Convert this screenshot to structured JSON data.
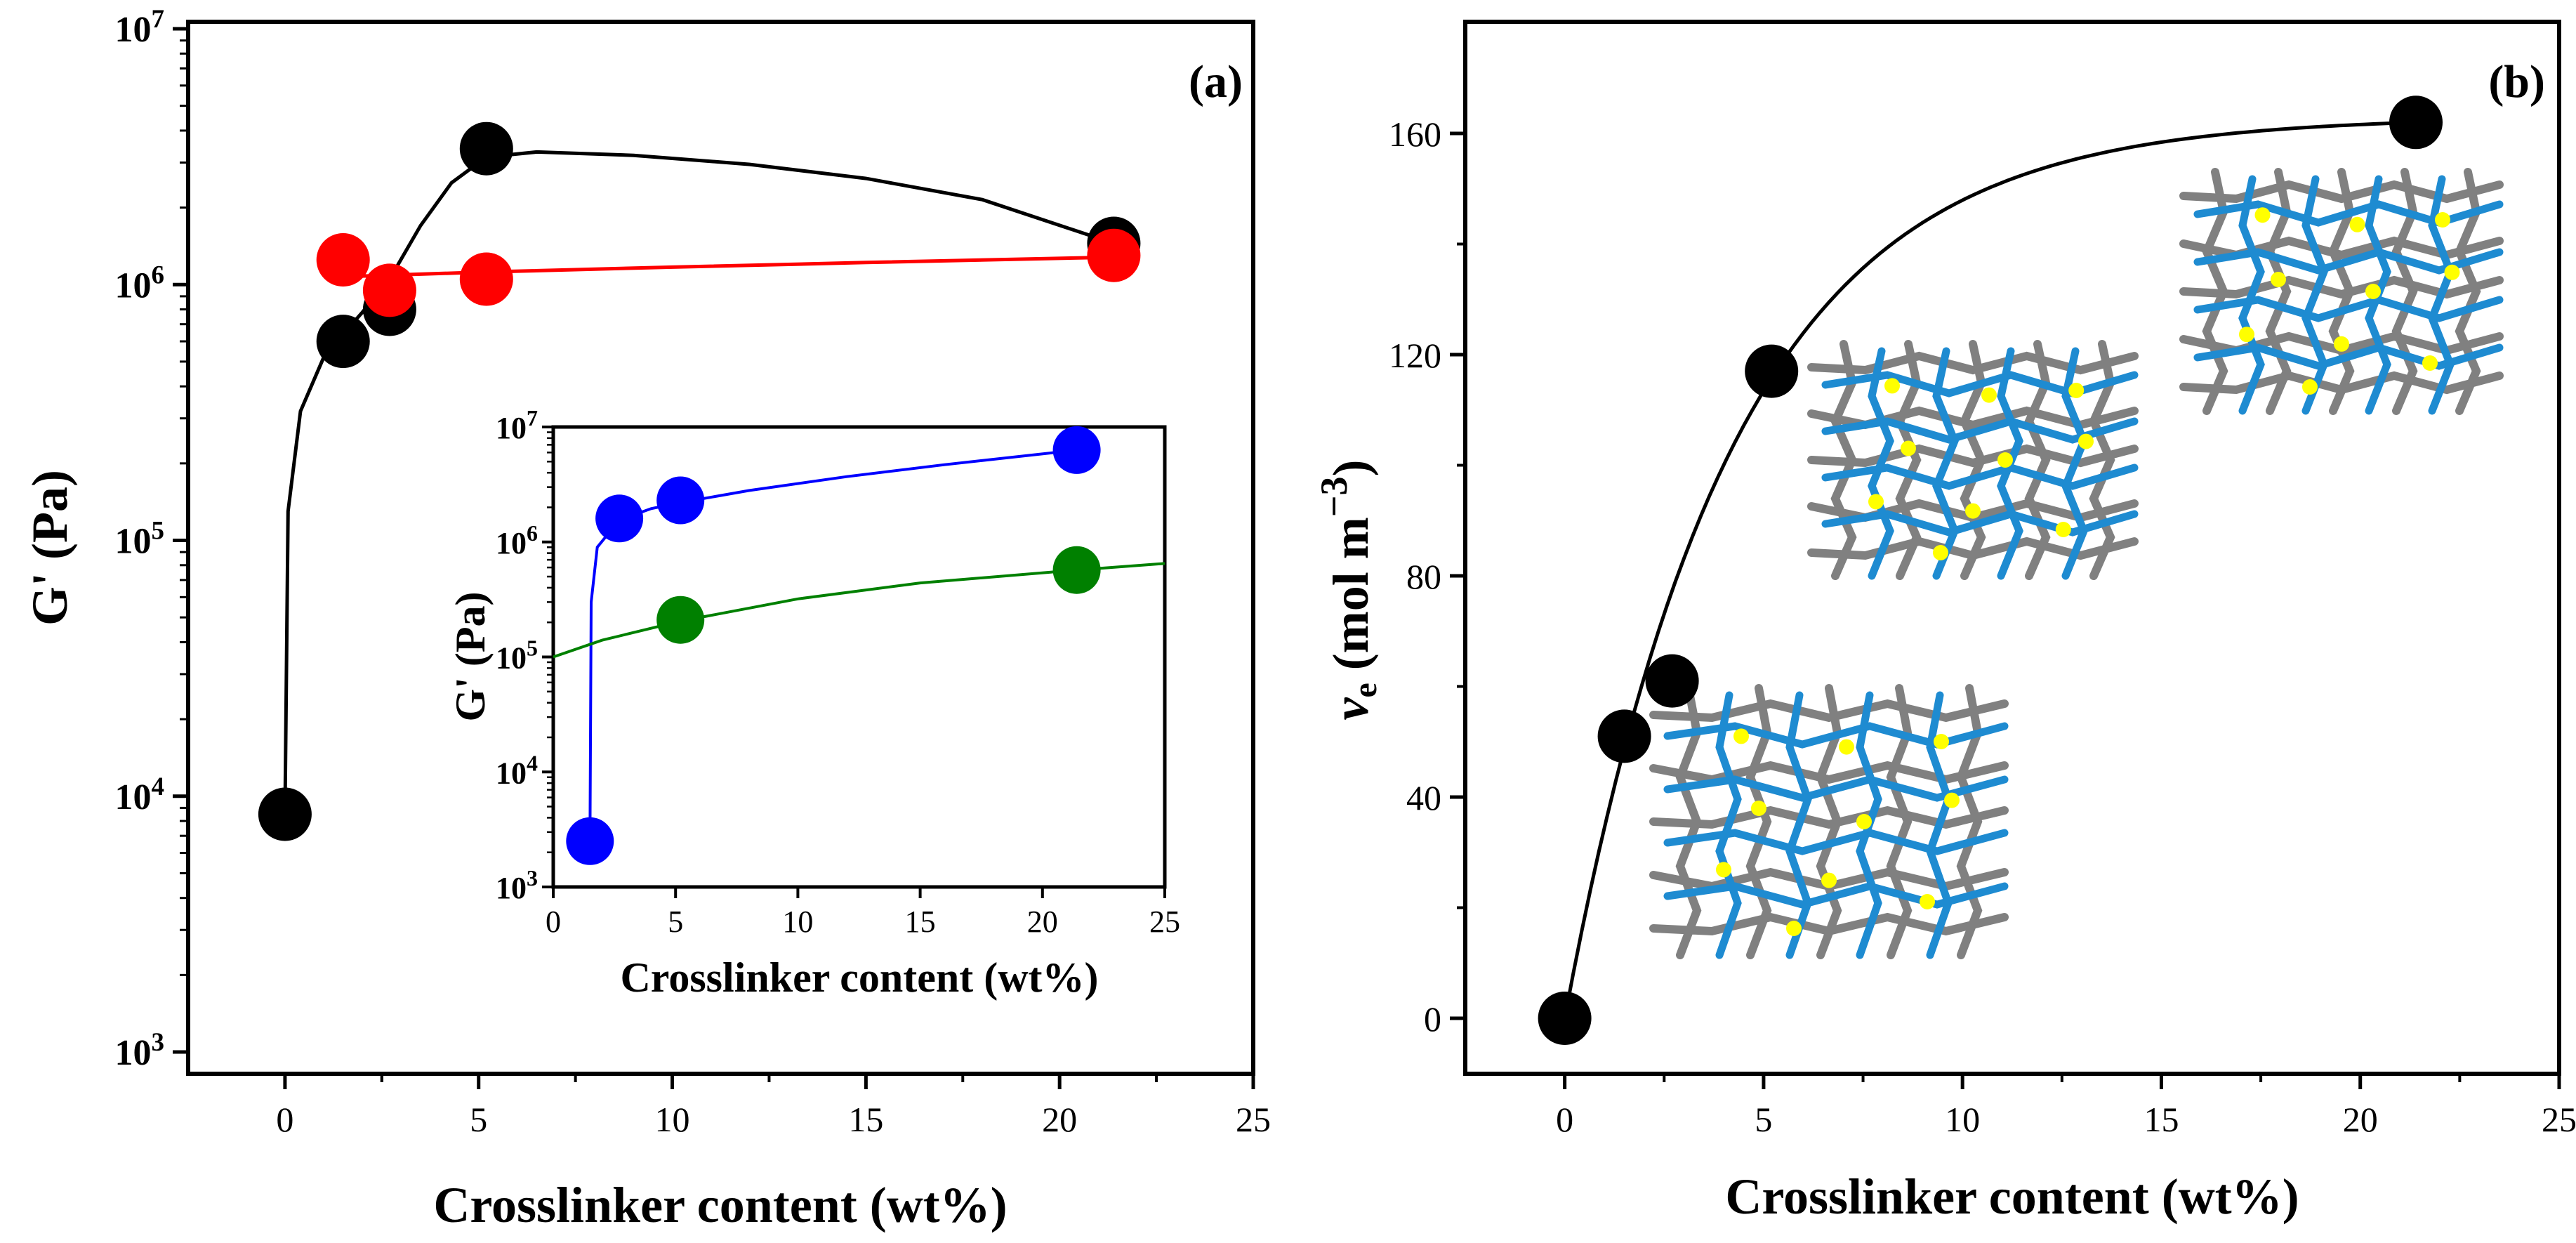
{
  "chart_data": [
    {
      "type": "scatter",
      "panel_label": "(a)",
      "xlabel": "Crosslinker content (wt%)",
      "ylabel": "G' (Pa)",
      "yscale": "log",
      "xlim": [
        -2.5,
        25
      ],
      "ylim": [
        1000,
        10000000
      ],
      "x_ticks": [
        0,
        5,
        10,
        15,
        20,
        25
      ],
      "y_ticks": [
        1000,
        10000,
        100000,
        1000000,
        10000000
      ],
      "y_tick_labels": [
        "10^3",
        "10^4",
        "10^5",
        "10^6",
        "10^7"
      ],
      "series": [
        {
          "color": "#000000",
          "x": [
            0,
            1.5,
            2.7,
            5.2,
            21.4
          ],
          "y": [
            8500,
            600000,
            800000,
            3400000,
            1450000
          ]
        },
        {
          "color": "#ff0000",
          "x": [
            1.5,
            2.7,
            5.2,
            21.4
          ],
          "y": [
            1250000,
            950000,
            1050000,
            1300000
          ]
        }
      ],
      "inset": {
        "type": "scatter",
        "xlabel": "Crosslinker content (wt%)",
        "ylabel": "G' (Pa)",
        "yscale": "log",
        "xlim": [
          0,
          25
        ],
        "ylim": [
          1000,
          10000000
        ],
        "x_ticks": [
          0,
          5,
          10,
          15,
          20,
          25
        ],
        "y_ticks": [
          1000,
          10000,
          100000,
          1000000,
          10000000
        ],
        "series": [
          {
            "color": "#0000ff",
            "x": [
              1.5,
              2.7,
              5.2,
              21.4
            ],
            "y": [
              2500,
              1600000,
              2300000,
              6300000
            ]
          },
          {
            "color": "#008000",
            "x": [
              5.2,
              21.4
            ],
            "y": [
              210000,
              570000
            ]
          }
        ]
      }
    },
    {
      "type": "scatter",
      "panel_label": "(b)",
      "xlabel": "Crosslinker content (wt%)",
      "ylabel": "ν_e (mol m^-3)",
      "xlim": [
        -2.5,
        25
      ],
      "ylim": [
        -10,
        178
      ],
      "x_ticks": [
        0,
        5,
        10,
        15,
        20,
        25
      ],
      "y_ticks": [
        0,
        40,
        80,
        120,
        160
      ],
      "series": [
        {
          "color": "#000000",
          "x": [
            0,
            1.5,
            2.7,
            5.2,
            21.4
          ],
          "y": [
            0,
            51,
            61,
            117,
            162
          ]
        }
      ]
    }
  ]
}
